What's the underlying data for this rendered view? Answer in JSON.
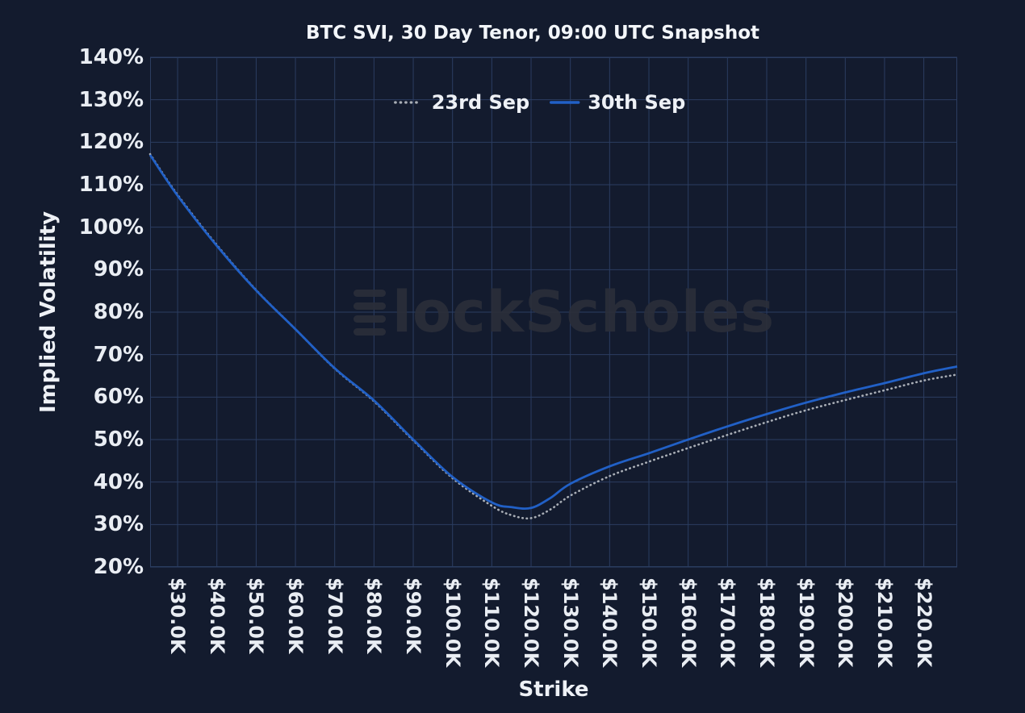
{
  "title": "BTC SVI, 30 Day Tenor, 09:00 UTC Snapshot",
  "watermark": {
    "brand": "BlockScholes",
    "logo_icon": "stacked-bars-b",
    "text_after_logo": "lockScholes"
  },
  "colors": {
    "background": "#131b2e",
    "grid": "#2b3d61",
    "text": "#e9edf3",
    "series_23rd_sep": "#a9aeb6",
    "series_30th_sep": "#2160c6",
    "watermark": "#2b2e3a"
  },
  "legend": {
    "items": [
      {
        "label": "23rd Sep",
        "style": "dotted",
        "color": "#a9aeb6"
      },
      {
        "label": "30th Sep",
        "style": "solid",
        "color": "#2160c6"
      }
    ]
  },
  "axes": {
    "x_label": "Strike",
    "y_label": "Implied Volatility",
    "x_tick_labels": [
      "$30.0K",
      "$40.0K",
      "$50.0K",
      "$60.0K",
      "$70.0K",
      "$80.0K",
      "$90.0K",
      "$100.0K",
      "$110.0K",
      "$120.0K",
      "$130.0K",
      "$140.0K",
      "$150.0K",
      "$160.0K",
      "$170.0K",
      "$180.0K",
      "$190.0K",
      "$200.0K",
      "$210.0K",
      "$220.0K"
    ],
    "y_tick_labels": [
      "20%",
      "30%",
      "40%",
      "50%",
      "60%",
      "70%",
      "80%",
      "90%",
      "100%",
      "110%",
      "120%",
      "130%",
      "140%"
    ]
  },
  "chart_data": {
    "type": "line",
    "title": "BTC SVI, 30 Day Tenor, 09:00 UTC Snapshot",
    "xlabel": "Strike",
    "ylabel": "Implied Volatility",
    "x_units": "USD thousands (strike price)",
    "y_units": "percent implied volatility",
    "xlim": [
      23,
      228.5
    ],
    "ylim": [
      20,
      140
    ],
    "x_ticks": [
      30,
      40,
      50,
      60,
      70,
      80,
      90,
      100,
      110,
      120,
      130,
      140,
      150,
      160,
      170,
      180,
      190,
      200,
      210,
      220
    ],
    "y_ticks": [
      20,
      30,
      40,
      50,
      60,
      70,
      80,
      90,
      100,
      110,
      120,
      130,
      140
    ],
    "grid": true,
    "legend_position": "top-center",
    "series": [
      {
        "name": "23rd Sep",
        "style": "dotted",
        "color": "#a9aeb6",
        "x": [
          23,
          30,
          40,
          50,
          60,
          70,
          80,
          90,
          100,
          110,
          115,
          120,
          125,
          130,
          140,
          150,
          160,
          170,
          180,
          190,
          200,
          210,
          220,
          228.5
        ],
        "y": [
          117.2,
          107.6,
          95.8,
          85.2,
          76.0,
          66.7,
          59.0,
          49.8,
          40.9,
          34.4,
          32.2,
          31.5,
          33.6,
          36.8,
          41.4,
          44.8,
          48.0,
          51.1,
          54.1,
          56.9,
          59.3,
          61.6,
          63.9,
          65.3
        ]
      },
      {
        "name": "30th Sep",
        "style": "solid",
        "color": "#2160c6",
        "x": [
          23,
          30,
          40,
          50,
          60,
          70,
          80,
          90,
          100,
          110,
          115,
          120,
          125,
          130,
          140,
          150,
          160,
          170,
          180,
          190,
          200,
          210,
          220,
          228.5
        ],
        "y": [
          117.0,
          107.4,
          95.6,
          85.1,
          76.0,
          66.8,
          59.2,
          50.0,
          41.2,
          35.2,
          34.1,
          33.9,
          36.3,
          39.6,
          43.7,
          46.8,
          50.0,
          53.1,
          56.0,
          58.7,
          61.1,
          63.3,
          65.6,
          67.2
        ]
      }
    ]
  }
}
